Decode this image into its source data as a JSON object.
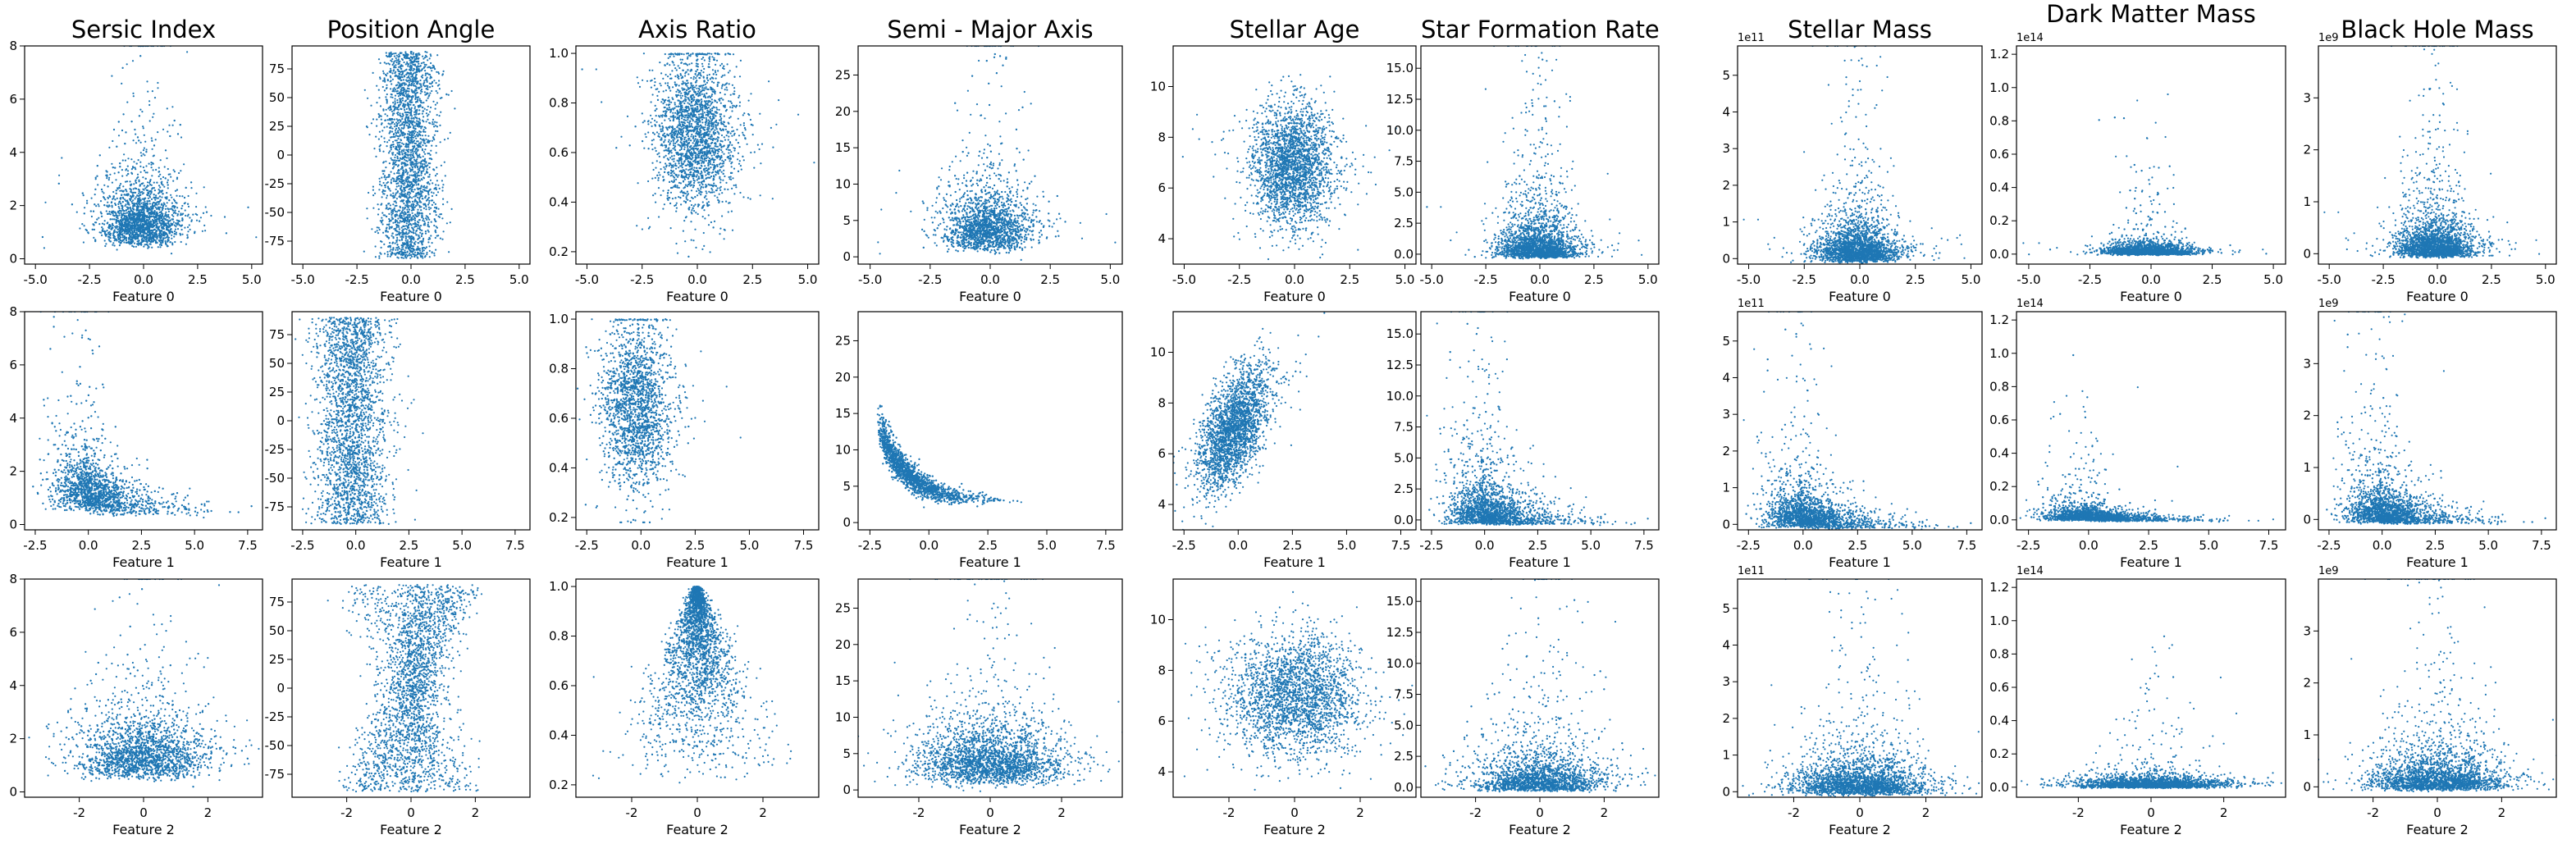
{
  "figure": {
    "column_titles": [
      "Sersic Index",
      "Position Angle",
      "Axis Ratio",
      "Semi - Major Axis",
      "Stellar Age",
      "Star Formation Rate",
      "Stellar Mass",
      "Dark Matter Mass",
      "Black Hole Mass"
    ],
    "row_xlabels": [
      "Feature 0",
      "Feature 1",
      "Feature 2"
    ],
    "point_color": "#1f77b4"
  },
  "chart_data": [
    {
      "type": "scatter",
      "row": 0,
      "col": 0,
      "title": "Sersic Index",
      "xlabel": "Feature 0",
      "xlim": [
        -5.5,
        5.5
      ],
      "ylim": [
        -0.2,
        8.0
      ],
      "xticks": [
        -5.0,
        -2.5,
        0.0,
        2.5,
        5.0
      ],
      "yticks": [
        0,
        2,
        4,
        6,
        8
      ],
      "yoffset": "",
      "dist": {
        "shape": "funnel",
        "cx": -0.1,
        "sx": 0.9,
        "base": 0.6,
        "y0": 1.3,
        "sy": 0.5,
        "tail": 1.5
      }
    },
    {
      "type": "scatter",
      "row": 0,
      "col": 1,
      "title": "Position Angle",
      "xlabel": "Feature 0",
      "xlim": [
        -5.5,
        5.5
      ],
      "ylim": [
        -95,
        95
      ],
      "xticks": [
        -5.0,
        -2.5,
        0.0,
        2.5,
        5.0
      ],
      "yticks": [
        -75,
        -50,
        -25,
        0,
        25,
        50,
        75
      ],
      "yoffset": "",
      "dist": {
        "shape": "angle_s",
        "cx": -0.1,
        "sx": 0.9,
        "amp": 0.5
      }
    },
    {
      "type": "scatter",
      "row": 0,
      "col": 2,
      "title": "Axis Ratio",
      "xlabel": "Feature 0",
      "xlim": [
        -5.5,
        5.5
      ],
      "ylim": [
        0.15,
        1.03
      ],
      "xticks": [
        -5.0,
        -2.5,
        0.0,
        2.5,
        5.0
      ],
      "yticks": [
        0.2,
        0.4,
        0.6,
        0.8,
        1.0
      ],
      "yoffset": "",
      "dist": {
        "shape": "ratio",
        "cx": -0.1,
        "sx": 0.9,
        "mu": 0.68,
        "sd": 0.16
      }
    },
    {
      "type": "scatter",
      "row": 0,
      "col": 3,
      "title": "Semi - Major Axis",
      "xlabel": "Feature 0",
      "xlim": [
        -5.5,
        5.5
      ],
      "ylim": [
        -1,
        29
      ],
      "xticks": [
        -5.0,
        -2.5,
        0.0,
        2.5,
        5.0
      ],
      "yticks": [
        0,
        5,
        10,
        15,
        20,
        25
      ],
      "yoffset": "",
      "dist": {
        "shape": "funnel",
        "cx": -0.1,
        "sx": 0.9,
        "base": 1.0,
        "y0": 5.0,
        "sy": 0.45,
        "tail": 7
      }
    },
    {
      "type": "scatter",
      "row": 0,
      "col": 4,
      "title": "Stellar Age",
      "xlabel": "Feature 0",
      "xlim": [
        -5.5,
        5.5
      ],
      "ylim": [
        3,
        11.6
      ],
      "xticks": [
        -5.0,
        -2.5,
        0.0,
        2.5,
        5.0
      ],
      "yticks": [
        4,
        6,
        8,
        10
      ],
      "yoffset": "",
      "dist": {
        "shape": "gauss",
        "cx": -0.1,
        "sx": 0.9,
        "mu": 6.9,
        "sd": 1.2
      }
    },
    {
      "type": "scatter",
      "row": 0,
      "col": 5,
      "title": "Star Formation Rate",
      "xlabel": "Feature 0",
      "xlim": [
        -5.5,
        5.5
      ],
      "ylim": [
        -0.8,
        16.8
      ],
      "xticks": [
        -5.0,
        -2.5,
        0.0,
        2.5,
        5.0
      ],
      "yticks": [
        0.0,
        2.5,
        5.0,
        7.5,
        10.0,
        12.5,
        15.0
      ],
      "yoffset": "",
      "dist": {
        "shape": "funnel",
        "cx": -0.1,
        "sx": 0.9,
        "base": 0.0,
        "y0": 1.0,
        "sy": 0.9,
        "tail": 3
      }
    },
    {
      "type": "scatter",
      "row": 0,
      "col": 6,
      "title": "Stellar Mass",
      "xlabel": "Feature 0",
      "xlim": [
        -5.5,
        5.5
      ],
      "ylim": [
        -0.15,
        5.8
      ],
      "xticks": [
        -5.0,
        -2.5,
        0.0,
        2.5,
        5.0
      ],
      "yticks": [
        0,
        1,
        2,
        3,
        4,
        5
      ],
      "yoffset": "1e11",
      "dist": {
        "shape": "funnel",
        "cx": -0.1,
        "sx": 0.9,
        "base": 0.0,
        "y0": 0.4,
        "sy": 0.7,
        "tail": 1
      }
    },
    {
      "type": "scatter",
      "row": 0,
      "col": 7,
      "title": "Dark Matter Mass",
      "xlabel": "Feature 0",
      "xlim": [
        -5.5,
        5.5
      ],
      "ylim": [
        -0.06,
        1.25
      ],
      "xticks": [
        -5.0,
        -2.5,
        0.0,
        2.5,
        5.0
      ],
      "yticks": [
        0.0,
        0.2,
        0.4,
        0.6,
        0.8,
        1.0,
        1.2
      ],
      "yoffset": "1e14",
      "dist": {
        "shape": "funnel",
        "cx": -0.1,
        "sx": 0.9,
        "base": 0.0,
        "y0": 0.03,
        "sy": 0.6,
        "tail": 0.1
      }
    },
    {
      "type": "scatter",
      "row": 0,
      "col": 8,
      "title": "Black Hole Mass",
      "xlabel": "Feature 0",
      "xlim": [
        -5.5,
        5.5
      ],
      "ylim": [
        -0.2,
        4.0
      ],
      "xticks": [
        -5.0,
        -2.5,
        0.0,
        2.5,
        5.0
      ],
      "yticks": [
        0,
        1,
        2,
        3
      ],
      "yoffset": "1e9",
      "dist": {
        "shape": "funnel",
        "cx": -0.1,
        "sx": 0.9,
        "base": 0.0,
        "y0": 0.25,
        "sy": 0.8,
        "tail": 0.8
      }
    },
    {
      "type": "scatter",
      "row": 1,
      "col": 0,
      "title": "Sersic Index",
      "xlabel": "Feature 1",
      "xlim": [
        -3,
        8.2
      ],
      "ylim": [
        -0.2,
        8.0
      ],
      "xticks": [
        -2.5,
        0.0,
        2.5,
        5.0,
        7.5
      ],
      "yticks": [
        0,
        2,
        4,
        6,
        8
      ],
      "yoffset": "",
      "dist": {
        "shape": "skewfun",
        "cx": -0.2,
        "sx": 0.8,
        "base": 0.6,
        "y0": 1.3,
        "sy": 0.5,
        "tail": 1.5
      }
    },
    {
      "type": "scatter",
      "row": 1,
      "col": 1,
      "title": "Position Angle",
      "xlabel": "Feature 1",
      "xlim": [
        -3,
        8.2
      ],
      "ylim": [
        -95,
        95
      ],
      "xticks": [
        -2.5,
        0.0,
        2.5,
        5.0,
        7.5
      ],
      "yticks": [
        -75,
        -50,
        -25,
        0,
        25,
        50,
        75
      ],
      "yoffset": "",
      "dist": {
        "shape": "uniform",
        "cx": -0.2,
        "sx": 0.8
      }
    },
    {
      "type": "scatter",
      "row": 1,
      "col": 2,
      "title": "Axis Ratio",
      "xlabel": "Feature 1",
      "xlim": [
        -3,
        8.2
      ],
      "ylim": [
        0.15,
        1.03
      ],
      "xticks": [
        -2.5,
        0.0,
        2.5,
        5.0,
        7.5
      ],
      "yticks": [
        0.2,
        0.4,
        0.6,
        0.8,
        1.0
      ],
      "yoffset": "",
      "dist": {
        "shape": "ratio",
        "cx": -0.2,
        "sx": 0.8,
        "mu": 0.65,
        "sd": 0.17
      }
    },
    {
      "type": "scatter",
      "row": 1,
      "col": 3,
      "title": "Semi - Major Axis",
      "xlabel": "Feature 1",
      "xlim": [
        -3,
        8.2
      ],
      "ylim": [
        -1,
        29
      ],
      "xticks": [
        -2.5,
        0.0,
        2.5,
        5.0,
        7.5
      ],
      "yticks": [
        0,
        5,
        10,
        15,
        20,
        25
      ],
      "yoffset": "",
      "dist": {
        "shape": "decay",
        "cx": -0.2,
        "sx": 0.8
      }
    },
    {
      "type": "scatter",
      "row": 1,
      "col": 4,
      "title": "Stellar Age",
      "xlabel": "Feature 1",
      "xlim": [
        -3,
        8.2
      ],
      "ylim": [
        3,
        11.6
      ],
      "xticks": [
        -2.5,
        0.0,
        2.5,
        5.0,
        7.5
      ],
      "yticks": [
        4,
        6,
        8,
        10
      ],
      "yoffset": "",
      "dist": {
        "shape": "corr",
        "cx": -0.2,
        "sx": 0.8,
        "mu": 7.0,
        "sd": 1.0,
        "slope": 0.8
      }
    },
    {
      "type": "scatter",
      "row": 1,
      "col": 5,
      "title": "Star Formation Rate",
      "xlabel": "Feature 1",
      "xlim": [
        -3,
        8.2
      ],
      "ylim": [
        -0.8,
        16.8
      ],
      "xticks": [
        -2.5,
        0.0,
        2.5,
        5.0,
        7.5
      ],
      "yticks": [
        0.0,
        2.5,
        5.0,
        7.5,
        10.0,
        12.5,
        15.0
      ],
      "yoffset": "",
      "dist": {
        "shape": "skewfun",
        "cx": -0.2,
        "sx": 0.8,
        "base": 0.0,
        "y0": 1.3,
        "sy": 0.9,
        "tail": 3
      }
    },
    {
      "type": "scatter",
      "row": 1,
      "col": 6,
      "title": "Stellar Mass",
      "xlabel": "Feature 1",
      "xlim": [
        -3,
        8.2
      ],
      "ylim": [
        -0.15,
        5.8
      ],
      "xticks": [
        -2.5,
        0.0,
        2.5,
        5.0,
        7.5
      ],
      "yticks": [
        0,
        1,
        2,
        3,
        4,
        5
      ],
      "yoffset": "1e11",
      "dist": {
        "shape": "skewfun",
        "cx": -0.2,
        "sx": 0.8,
        "base": 0.0,
        "y0": 0.45,
        "sy": 0.7,
        "tail": 1
      }
    },
    {
      "type": "scatter",
      "row": 1,
      "col": 7,
      "title": "Dark Matter Mass",
      "xlabel": "Feature 1",
      "xlim": [
        -3,
        8.2
      ],
      "ylim": [
        -0.06,
        1.25
      ],
      "xticks": [
        -2.5,
        0.0,
        2.5,
        5.0,
        7.5
      ],
      "yticks": [
        0.0,
        0.2,
        0.4,
        0.6,
        0.8,
        1.0,
        1.2
      ],
      "yoffset": "1e14",
      "dist": {
        "shape": "skewfun",
        "cx": -0.2,
        "sx": 0.8,
        "base": 0.0,
        "y0": 0.04,
        "sy": 0.6,
        "tail": 0.1
      }
    },
    {
      "type": "scatter",
      "row": 1,
      "col": 8,
      "title": "Black Hole Mass",
      "xlabel": "Feature 1",
      "xlim": [
        -3,
        8.2
      ],
      "ylim": [
        -0.2,
        4.0
      ],
      "xticks": [
        -2.5,
        0.0,
        2.5,
        5.0,
        7.5
      ],
      "yticks": [
        0,
        1,
        2,
        3
      ],
      "yoffset": "1e9",
      "dist": {
        "shape": "skewfun",
        "cx": -0.2,
        "sx": 0.8,
        "base": 0.0,
        "y0": 0.3,
        "sy": 0.8,
        "tail": 0.8
      }
    },
    {
      "type": "scatter",
      "row": 2,
      "col": 0,
      "title": "Sersic Index",
      "xlabel": "Feature 2",
      "xlim": [
        -3.7,
        3.7
      ],
      "ylim": [
        -0.2,
        8.0
      ],
      "xticks": [
        -2,
        0,
        2
      ],
      "yticks": [
        0,
        2,
        4,
        6,
        8
      ],
      "yoffset": "",
      "dist": {
        "shape": "funnel",
        "cx": 0.0,
        "sx": 1.0,
        "base": 0.6,
        "y0": 1.3,
        "sy": 0.5,
        "tail": 1.5
      }
    },
    {
      "type": "scatter",
      "row": 2,
      "col": 1,
      "title": "Position Angle",
      "xlabel": "Feature 2",
      "xlim": [
        -3.7,
        3.7
      ],
      "ylim": [
        -95,
        95
      ],
      "xticks": [
        -2,
        0,
        2
      ],
      "yticks": [
        -75,
        -50,
        -25,
        0,
        25,
        50,
        75
      ],
      "yoffset": "",
      "dist": {
        "shape": "angle_x",
        "cx": 0.0,
        "sx": 1.0
      }
    },
    {
      "type": "scatter",
      "row": 2,
      "col": 2,
      "title": "Axis Ratio",
      "xlabel": "Feature 2",
      "xlim": [
        -3.7,
        3.7
      ],
      "ylim": [
        0.15,
        1.03
      ],
      "xticks": [
        -2,
        0,
        2
      ],
      "yticks": [
        0.2,
        0.4,
        0.6,
        0.8,
        1.0
      ],
      "yoffset": "",
      "dist": {
        "shape": "triangle",
        "cx": 0.0,
        "sx": 1.0
      }
    },
    {
      "type": "scatter",
      "row": 2,
      "col": 3,
      "title": "Semi - Major Axis",
      "xlabel": "Feature 2",
      "xlim": [
        -3.7,
        3.7
      ],
      "ylim": [
        -1,
        29
      ],
      "xticks": [
        -2,
        0,
        2
      ],
      "yticks": [
        0,
        5,
        10,
        15,
        20,
        25
      ],
      "yoffset": "",
      "dist": {
        "shape": "funnel",
        "cx": 0.0,
        "sx": 1.0,
        "base": 1.0,
        "y0": 5.0,
        "sy": 0.45,
        "tail": 7
      }
    },
    {
      "type": "scatter",
      "row": 2,
      "col": 4,
      "title": "Stellar Age",
      "xlabel": "Feature 2",
      "xlim": [
        -3.7,
        3.7
      ],
      "ylim": [
        3,
        11.6
      ],
      "xticks": [
        -2,
        0,
        2
      ],
      "yticks": [
        4,
        6,
        8,
        10
      ],
      "yoffset": "",
      "dist": {
        "shape": "gauss",
        "cx": 0.0,
        "sx": 1.0,
        "mu": 7.0,
        "sd": 1.2
      }
    },
    {
      "type": "scatter",
      "row": 2,
      "col": 5,
      "title": "Star Formation Rate",
      "xlabel": "Feature 2",
      "xlim": [
        -3.7,
        3.7
      ],
      "ylim": [
        -0.8,
        16.8
      ],
      "xticks": [
        -2,
        0,
        2
      ],
      "yticks": [
        0.0,
        2.5,
        5.0,
        7.5,
        10.0,
        12.5,
        15.0
      ],
      "yoffset": "",
      "dist": {
        "shape": "funnel",
        "cx": 0.0,
        "sx": 1.0,
        "base": 0.0,
        "y0": 1.0,
        "sy": 0.9,
        "tail": 3
      }
    },
    {
      "type": "scatter",
      "row": 2,
      "col": 6,
      "title": "Stellar Mass",
      "xlabel": "Feature 2",
      "xlim": [
        -3.7,
        3.7
      ],
      "ylim": [
        -0.15,
        5.8
      ],
      "xticks": [
        -2,
        0,
        2
      ],
      "yticks": [
        0,
        1,
        2,
        3,
        4,
        5
      ],
      "yoffset": "1e11",
      "dist": {
        "shape": "funnel",
        "cx": 0.0,
        "sx": 1.0,
        "base": 0.0,
        "y0": 0.4,
        "sy": 0.7,
        "tail": 1
      }
    },
    {
      "type": "scatter",
      "row": 2,
      "col": 7,
      "title": "Dark Matter Mass",
      "xlabel": "Feature 2",
      "xlim": [
        -3.7,
        3.7
      ],
      "ylim": [
        -0.06,
        1.25
      ],
      "xticks": [
        -2,
        0,
        2
      ],
      "yticks": [
        0.0,
        0.2,
        0.4,
        0.6,
        0.8,
        1.0,
        1.2
      ],
      "yoffset": "1e14",
      "dist": {
        "shape": "funnel",
        "cx": 0.0,
        "sx": 1.0,
        "base": 0.0,
        "y0": 0.03,
        "sy": 0.6,
        "tail": 0.1
      }
    },
    {
      "type": "scatter",
      "row": 2,
      "col": 8,
      "title": "Black Hole Mass",
      "xlabel": "Feature 2",
      "xlim": [
        -3.7,
        3.7
      ],
      "ylim": [
        -0.2,
        4.0
      ],
      "xticks": [
        -2,
        0,
        2
      ],
      "yticks": [
        0,
        1,
        2,
        3
      ],
      "yoffset": "1e9",
      "dist": {
        "shape": "funnel",
        "cx": 0.0,
        "sx": 1.0,
        "base": 0.0,
        "y0": 0.25,
        "sy": 0.8,
        "tail": 0.8
      }
    }
  ]
}
